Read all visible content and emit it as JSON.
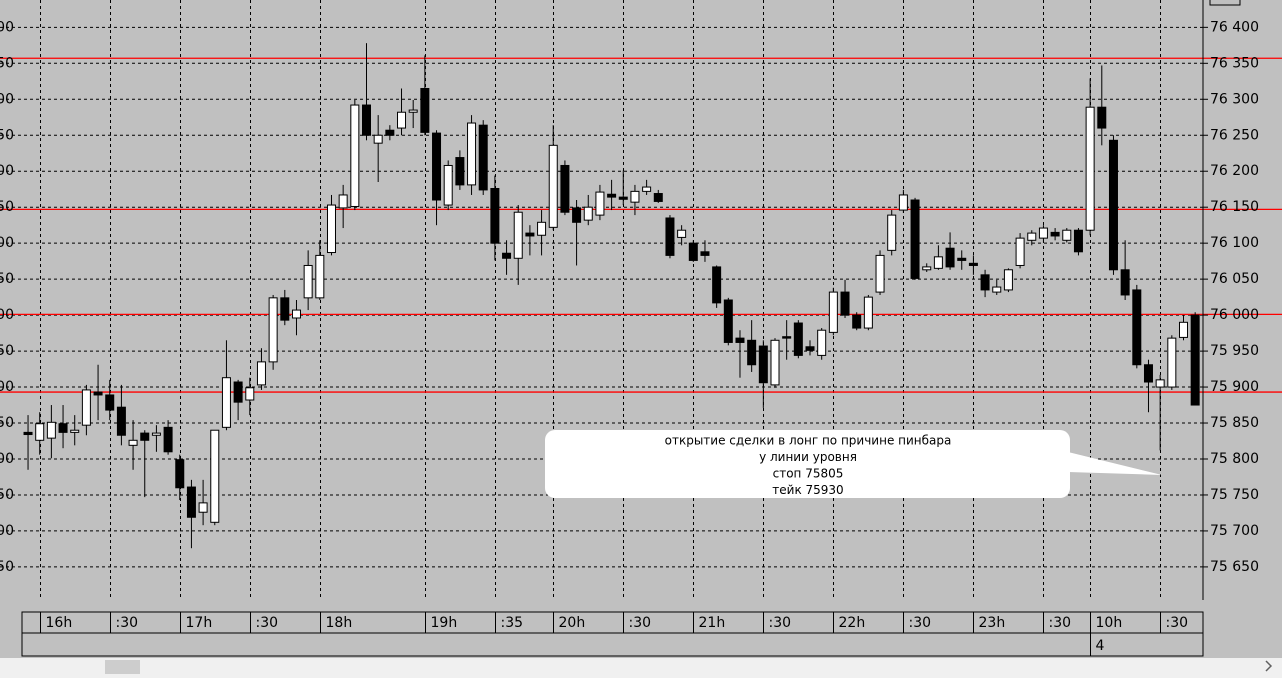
{
  "chart_data": {
    "type": "candlestick",
    "categories": [
      null,
      "16h",
      null,
      null,
      null,
      null,
      null,
      ":30",
      null,
      null,
      null,
      null,
      null,
      "17h",
      null,
      null,
      null,
      null,
      null,
      ":30",
      null,
      null,
      null,
      null,
      null,
      "18h",
      null,
      null,
      null,
      null,
      null,
      null,
      null,
      null,
      "19h",
      null,
      null,
      null,
      null,
      null,
      ":35",
      null,
      null,
      null,
      null,
      "20h",
      null,
      null,
      null,
      null,
      null,
      ":30",
      null,
      null,
      null,
      null,
      null,
      "21h",
      null,
      null,
      null,
      null,
      null,
      ":30",
      null,
      null,
      null,
      null,
      null,
      "22h",
      null,
      null,
      null,
      null,
      null,
      ":30",
      null,
      null,
      null,
      null,
      null,
      "23h",
      null,
      null,
      null,
      null,
      null,
      ":30",
      null,
      null,
      null,
      "10h",
      null,
      null,
      null,
      null,
      null,
      ":30",
      null,
      null,
      null
    ],
    "dates": [
      null,
      null,
      null,
      null,
      null,
      null,
      null,
      null,
      null,
      null,
      null,
      null,
      null,
      null,
      null,
      null,
      null,
      null,
      null,
      null,
      null,
      null,
      null,
      null,
      null,
      null,
      null,
      null,
      null,
      null,
      null,
      null,
      null,
      null,
      null,
      null,
      null,
      null,
      null,
      null,
      null,
      null,
      null,
      null,
      null,
      null,
      null,
      null,
      null,
      null,
      null,
      null,
      null,
      null,
      null,
      null,
      null,
      null,
      null,
      null,
      null,
      null,
      null,
      null,
      null,
      null,
      null,
      null,
      null,
      null,
      null,
      null,
      null,
      null,
      null,
      null,
      null,
      null,
      null,
      null,
      null,
      null,
      null,
      null,
      null,
      null,
      null,
      null,
      null,
      null,
      null,
      "4",
      null,
      null,
      null,
      null,
      null,
      null,
      null,
      null,
      null
    ],
    "open": [
      75837,
      75826,
      75829,
      75849,
      75837,
      75847,
      75893,
      75889,
      75872,
      75819,
      75836,
      75833,
      75844,
      75799,
      75761,
      75726,
      75712,
      75844,
      75907,
      75882,
      75903,
      75935,
      76024,
      75996,
      76024,
      76024,
      76087,
      76149,
      76151,
      76292,
      76239,
      76257,
      76260,
      76282,
      76315,
      76253,
      76153,
      76219,
      76181,
      76264,
      76176,
      76086,
      76079,
      76114,
      76111,
      76122,
      76208,
      76149,
      76132,
      76139,
      76168,
      76164,
      76157,
      76172,
      76169,
      76135,
      76108,
      76100,
      76088,
      76067,
      76021,
      75968,
      75965,
      75957,
      75903,
      75970,
      75989,
      75956,
      75944,
      75976,
      76032,
      76000,
      75982,
      76032,
      76090,
      76146,
      76160,
      76063,
      76065,
      76093,
      76079,
      76072,
      76056,
      76032,
      76035,
      76069,
      76104,
      76107,
      76115,
      76104,
      76118,
      76118,
      76289,
      76243,
      76063,
      76035,
      75931,
      75900,
      75900,
      75969,
      76000
    ],
    "high": [
      75861,
      75865,
      75875,
      75875,
      75861,
      75903,
      75931,
      75910,
      75903,
      75854,
      75840,
      75847,
      75854,
      75806,
      75771,
      75771,
      75840,
      75965,
      75910,
      75913,
      75954,
      76028,
      76035,
      76021,
      76090,
      76104,
      76167,
      76181,
      76299,
      76378,
      76278,
      76264,
      76315,
      76299,
      76361,
      76257,
      76215,
      76229,
      76278,
      76271,
      76194,
      76104,
      76153,
      76125,
      76146,
      76264,
      76215,
      76160,
      76167,
      76181,
      76188,
      76201,
      76181,
      76188,
      76174,
      76139,
      76125,
      76104,
      76104,
      76069,
      76024,
      75979,
      75993,
      75965,
      75968,
      75993,
      75993,
      75965,
      75982,
      76038,
      76049,
      76004,
      76028,
      76090,
      76146,
      76174,
      76163,
      76072,
      76097,
      76115,
      76090,
      76083,
      76063,
      76049,
      76065,
      76114,
      76118,
      76125,
      76121,
      76121,
      76121,
      76329,
      76347,
      76250,
      76104,
      76042,
      75938,
      75917,
      75972,
      76000,
      76004
    ],
    "low": [
      75785,
      75806,
      75801,
      75815,
      75819,
      75833,
      75854,
      75854,
      75819,
      75785,
      75747,
      75810,
      75806,
      75743,
      75676,
      75708,
      75708,
      75840,
      75854,
      75861,
      75896,
      75924,
      75986,
      75972,
      76007,
      76021,
      76083,
      76121,
      76146,
      76243,
      76185,
      76243,
      76250,
      76260,
      76250,
      76125,
      76146,
      76174,
      76167,
      76167,
      76076,
      76056,
      76042,
      76083,
      76083,
      76118,
      76139,
      76069,
      76125,
      76132,
      76146,
      76153,
      76139,
      76167,
      76156,
      76079,
      76097,
      76074,
      76074,
      76010,
      75958,
      75913,
      75921,
      75871,
      75899,
      75938,
      75940,
      75944,
      75938,
      75972,
      75996,
      75979,
      75979,
      76028,
      76083,
      76142,
      76049,
      76060,
      76063,
      76063,
      76063,
      76056,
      76025,
      76028,
      76032,
      76065,
      76097,
      76101,
      76104,
      76101,
      76083,
      76111,
      76236,
      76056,
      76021,
      75926,
      75865,
      75812,
      75896,
      75965,
      75875
    ],
    "close": [
      75834,
      75849,
      75851,
      75837,
      75840,
      75896,
      75889,
      75868,
      75833,
      75826,
      75826,
      75836,
      75810,
      75760,
      75719,
      75739,
      75840,
      75913,
      75879,
      75899,
      75935,
      76024,
      75993,
      76007,
      76069,
      76083,
      76153,
      76167,
      76292,
      76250,
      76250,
      76250,
      76282,
      76285,
      76254,
      76160,
      76208,
      76181,
      76267,
      76174,
      76100,
      76079,
      76143,
      76110,
      76129,
      76236,
      76143,
      76129,
      76150,
      76171,
      76164,
      76161,
      76172,
      76178,
      76158,
      76083,
      76118,
      76076,
      76083,
      76017,
      75962,
      75962,
      75931,
      75906,
      75965,
      75968,
      75944,
      75951,
      75979,
      76032,
      76000,
      75982,
      76025,
      76083,
      76139,
      76167,
      76051,
      76067,
      76081,
      76067,
      76076,
      76069,
      76035,
      76039,
      76063,
      76107,
      76114,
      76121,
      76110,
      76118,
      76088,
      76289,
      76260,
      76063,
      76028,
      75931,
      75907,
      75910,
      75968,
      75990,
      75875
    ],
    "up_color": "#ffffff",
    "down_color": "#000000",
    "ylim": [
      75604,
      76438
    ],
    "yticks": [
      {
        "value": 75650,
        "label": "75 650"
      },
      {
        "value": 75700,
        "label": "75 700"
      },
      {
        "value": 75750,
        "label": "75 750"
      },
      {
        "value": 75800,
        "label": "75 800"
      },
      {
        "value": 75850,
        "label": "75 850"
      },
      {
        "value": 75900,
        "label": "75 900"
      },
      {
        "value": 75950,
        "label": "75 950"
      },
      {
        "value": 76000,
        "label": "76 000"
      },
      {
        "value": 76050,
        "label": "76 050"
      },
      {
        "value": 76100,
        "label": "76 100"
      },
      {
        "value": 76150,
        "label": "76 150"
      },
      {
        "value": 76200,
        "label": "76 200"
      },
      {
        "value": 76250,
        "label": "76 250"
      },
      {
        "value": 76300,
        "label": "76 300"
      },
      {
        "value": 76350,
        "label": "76 350"
      },
      {
        "value": 76400,
        "label": "76 400"
      }
    ],
    "grid": true,
    "levels": [
      76357,
      76147,
      76001,
      75893
    ],
    "level_color": "#ff0000",
    "annotation": [
      "открытие сделки в лонг по причине пинбара",
      "у линии уровня",
      "стоп  75805",
      "тейк 75930"
    ]
  }
}
